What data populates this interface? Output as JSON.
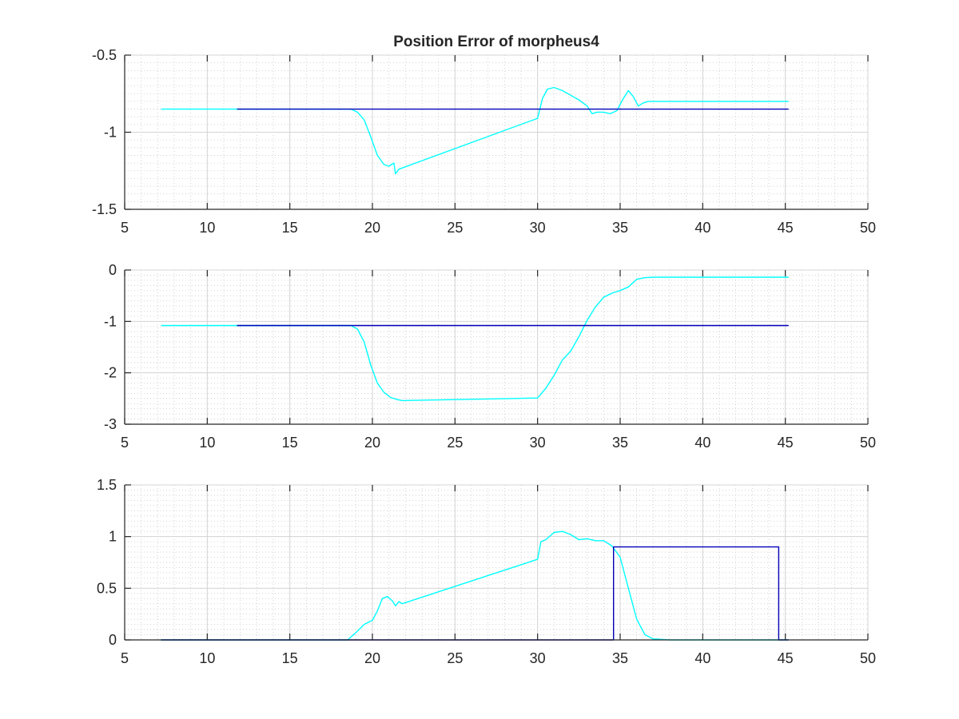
{
  "figure": {
    "title": "Position Error of morpheus4"
  },
  "colors": {
    "series_cyan": "#00ffff",
    "series_blue": "#0000b8",
    "axis": "#262626",
    "grid": "#d4d4d4",
    "background": "#ffffff"
  },
  "chart_data": [
    {
      "type": "line",
      "title": "Position Error of morpheus4",
      "xlabel": "",
      "ylabel": "",
      "xlim": [
        5,
        50
      ],
      "ylim": [
        -1.5,
        -0.5
      ],
      "xticks": [
        5,
        10,
        15,
        20,
        25,
        30,
        35,
        40,
        45,
        50
      ],
      "yticks": [
        -1.5,
        -1,
        -0.5
      ],
      "xtick_labels": [
        "5",
        "10",
        "15",
        "20",
        "25",
        "30",
        "35",
        "40",
        "45",
        "50"
      ],
      "ytick_labels": [
        "-1.5",
        "-1",
        "-0.5"
      ],
      "grid": true,
      "minor_grid": true,
      "series": [
        {
          "color": "#00ffff",
          "x": [
            7.2,
            11.8,
            18.7,
            19.1,
            19.5,
            19.9,
            20.3,
            20.7,
            21.0,
            21.3,
            21.4,
            21.6,
            30.0,
            30.3,
            30.6,
            31.0,
            31.5,
            32.0,
            32.5,
            33.0,
            33.3,
            33.6,
            34.0,
            34.4,
            34.8,
            35.2,
            35.5,
            35.8,
            36.1,
            36.4,
            36.7,
            37.0,
            38.0,
            40.0,
            45.2
          ],
          "y": [
            -0.85,
            -0.85,
            -0.85,
            -0.87,
            -0.92,
            -1.03,
            -1.15,
            -1.21,
            -1.22,
            -1.2,
            -1.27,
            -1.24,
            -0.91,
            -0.78,
            -0.72,
            -0.71,
            -0.73,
            -0.76,
            -0.79,
            -0.83,
            -0.88,
            -0.87,
            -0.87,
            -0.88,
            -0.86,
            -0.78,
            -0.73,
            -0.77,
            -0.83,
            -0.81,
            -0.8,
            -0.8,
            -0.8,
            -0.8,
            -0.8
          ]
        },
        {
          "color": "#0000b8",
          "x": [
            11.8,
            45.2
          ],
          "y": [
            -0.85,
            -0.85
          ]
        }
      ]
    },
    {
      "type": "line",
      "xlabel": "",
      "ylabel": "",
      "xlim": [
        5,
        50
      ],
      "ylim": [
        -3,
        0
      ],
      "xticks": [
        5,
        10,
        15,
        20,
        25,
        30,
        35,
        40,
        45,
        50
      ],
      "yticks": [
        -3,
        -2,
        -1,
        0
      ],
      "xtick_labels": [
        "5",
        "10",
        "15",
        "20",
        "25",
        "30",
        "35",
        "40",
        "45",
        "50"
      ],
      "ytick_labels": [
        "-3",
        "-2",
        "-1",
        "0"
      ],
      "grid": true,
      "minor_grid": true,
      "series": [
        {
          "color": "#00ffff",
          "x": [
            7.2,
            11.8,
            18.7,
            19.1,
            19.5,
            19.9,
            20.3,
            20.7,
            21.1,
            21.5,
            21.8,
            30.0,
            30.5,
            31.0,
            31.5,
            32.0,
            32.5,
            33.0,
            33.5,
            34.0,
            34.5,
            35.0,
            35.5,
            36.0,
            36.5,
            37.0,
            38.0,
            40.0,
            45.2
          ],
          "y": [
            -1.08,
            -1.08,
            -1.08,
            -1.15,
            -1.4,
            -1.85,
            -2.2,
            -2.38,
            -2.48,
            -2.52,
            -2.54,
            -2.49,
            -2.3,
            -2.05,
            -1.75,
            -1.58,
            -1.3,
            -0.98,
            -0.72,
            -0.53,
            -0.45,
            -0.4,
            -0.33,
            -0.18,
            -0.15,
            -0.14,
            -0.14,
            -0.14,
            -0.14
          ]
        },
        {
          "color": "#0000b8",
          "x": [
            11.8,
            45.2
          ],
          "y": [
            -1.08,
            -1.08
          ]
        }
      ]
    },
    {
      "type": "line",
      "xlabel": "",
      "ylabel": "",
      "xlim": [
        5,
        50
      ],
      "ylim": [
        0,
        1.5
      ],
      "xticks": [
        5,
        10,
        15,
        20,
        25,
        30,
        35,
        40,
        45,
        50
      ],
      "yticks": [
        0,
        0.5,
        1,
        1.5
      ],
      "xtick_labels": [
        "5",
        "10",
        "15",
        "20",
        "25",
        "30",
        "35",
        "40",
        "45",
        "50"
      ],
      "ytick_labels": [
        "0",
        "0.5",
        "1",
        "1.5"
      ],
      "grid": true,
      "minor_grid": true,
      "series": [
        {
          "color": "#00ffff",
          "x": [
            7.2,
            18.5,
            19.0,
            19.5,
            20.0,
            20.3,
            20.6,
            20.9,
            21.2,
            21.4,
            21.6,
            21.8,
            30.0,
            30.2,
            30.5,
            31.0,
            31.5,
            32.0,
            32.5,
            33.0,
            33.5,
            34.0,
            34.5,
            35.0,
            35.5,
            36.0,
            36.5,
            37.0,
            38.0,
            45.2
          ],
          "y": [
            0.0,
            0.0,
            0.07,
            0.15,
            0.19,
            0.28,
            0.4,
            0.42,
            0.38,
            0.33,
            0.37,
            0.35,
            0.78,
            0.95,
            0.97,
            1.04,
            1.05,
            1.02,
            0.97,
            0.98,
            0.96,
            0.96,
            0.91,
            0.8,
            0.5,
            0.2,
            0.05,
            0.01,
            0.0,
            0.0
          ]
        },
        {
          "color": "#0000b8",
          "x": [
            7.2,
            34.6,
            34.6,
            44.6,
            44.6,
            45.2
          ],
          "y": [
            0.0,
            0.0,
            0.9,
            0.9,
            0.0,
            0.0
          ]
        }
      ]
    }
  ]
}
